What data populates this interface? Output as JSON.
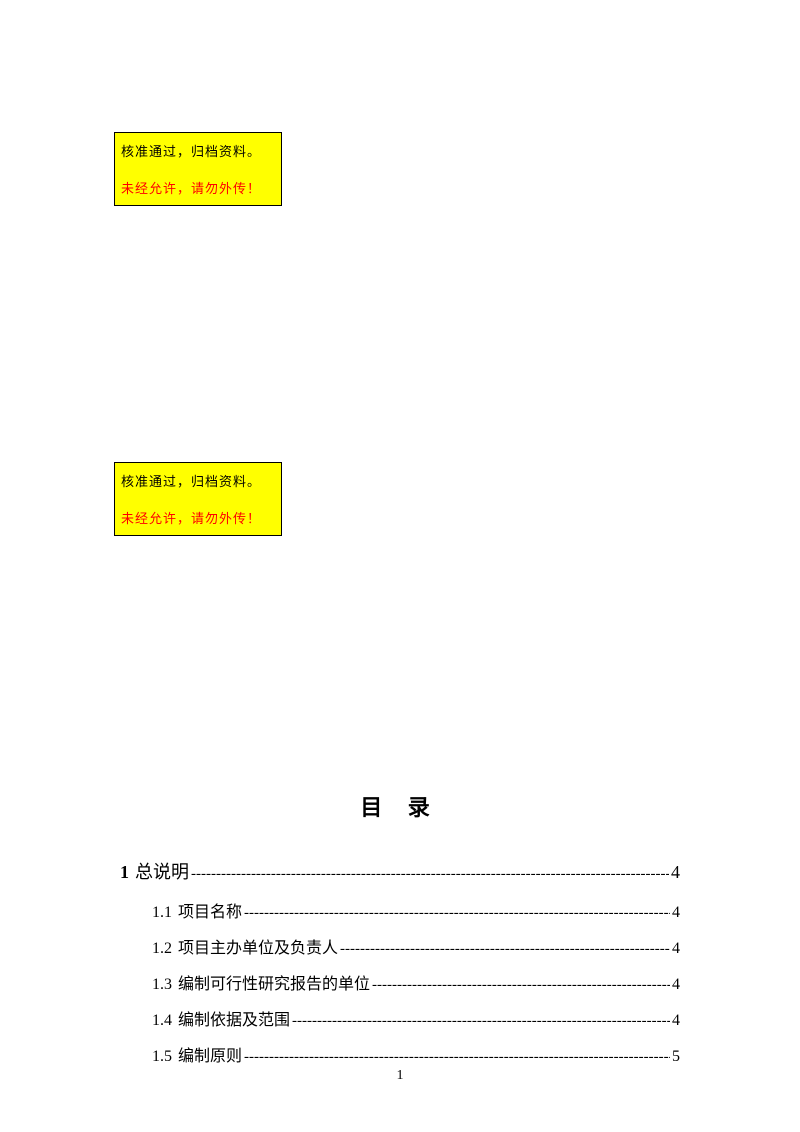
{
  "stamp": {
    "line1": "核准通过，归档资料。",
    "line2": "未经允许，请勿外传！",
    "bg_color": "#ffff00",
    "border_color": "#000000",
    "line2_color": "#ff0000"
  },
  "toc": {
    "title": "目  录",
    "items": [
      {
        "level": 1,
        "num": "1",
        "label": "总说明",
        "page": "4"
      },
      {
        "level": 2,
        "num": "1.1",
        "label": "项目名称",
        "page": "4"
      },
      {
        "level": 2,
        "num": "1.2",
        "label": "项目主办单位及负责人",
        "page": "4"
      },
      {
        "level": 2,
        "num": "1.3",
        "label": "编制可行性研究报告的单位",
        "page": "4"
      },
      {
        "level": 2,
        "num": "1.4",
        "label": "编制依据及范围",
        "page": "4"
      },
      {
        "level": 2,
        "num": "1.5",
        "label": "编制原则",
        "page": "5"
      }
    ],
    "dashes": "-----------------------------------------------------------------------------------------------------"
  },
  "footer": {
    "page_number": "1"
  }
}
